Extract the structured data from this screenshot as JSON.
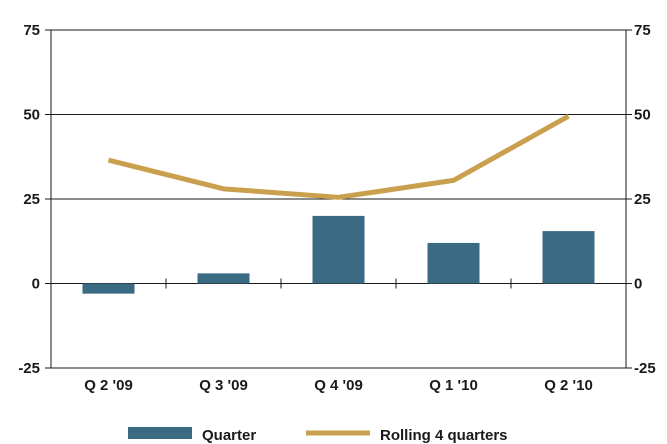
{
  "chart_data": {
    "type": "bar",
    "categories": [
      "Q 2  '09",
      "Q 3  '09",
      "Q 4  '09",
      "Q 1  '10",
      "Q 2  '10"
    ],
    "series": [
      {
        "name": "Quarter",
        "type": "bar",
        "values": [
          -3,
          3,
          20,
          12,
          15.5
        ]
      },
      {
        "name": "Rolling 4 quarters",
        "type": "line",
        "values": [
          36.5,
          28,
          25.5,
          30.5,
          49.5
        ]
      }
    ],
    "ylim": [
      -25,
      75
    ],
    "yticks": [
      -25,
      0,
      25,
      50,
      75
    ],
    "secondary_yticks": [
      -25,
      0,
      25,
      50,
      75
    ],
    "grid": true,
    "legend_position": "bottom",
    "colors": {
      "Quarter": "#3a6b82",
      "Rolling 4 quarters": "#c9a14e"
    }
  }
}
